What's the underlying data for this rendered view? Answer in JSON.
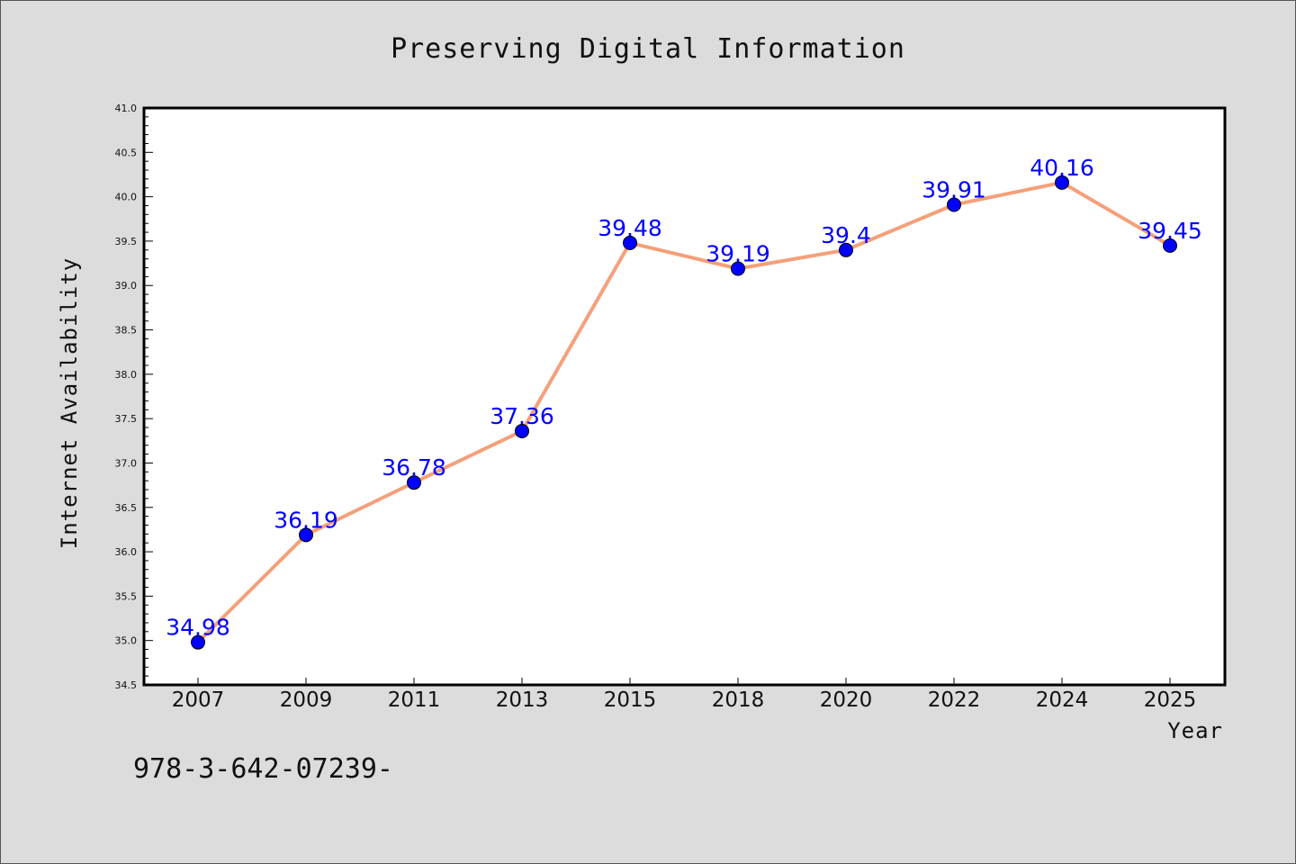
{
  "chart_data": {
    "type": "line",
    "title": "Preserving Digital Information",
    "xlabel": "Year",
    "ylabel": "Internet Availability",
    "categories": [
      "2007",
      "2009",
      "2011",
      "2013",
      "2015",
      "2018",
      "2020",
      "2022",
      "2024",
      "2025"
    ],
    "series": [
      {
        "values": [
          34.98,
          36.19,
          36.78,
          37.36,
          39.48,
          39.19,
          39.4,
          39.91,
          40.16,
          39.45
        ],
        "data_labels": [
          "34.98",
          "36.19",
          "36.78",
          "37.36",
          "39.48",
          "39.19",
          "39.4",
          "39.91",
          "40.16",
          "39.45"
        ]
      }
    ],
    "ylim": [
      34.5,
      41.0
    ],
    "yticks": [
      "34.5",
      "35.0",
      "35.5",
      "36.0",
      "36.5",
      "37.0",
      "37.5",
      "38.0",
      "38.5",
      "39.0",
      "39.5",
      "40.0",
      "40.5",
      "41.0"
    ],
    "grid": false,
    "colors": {
      "line": "#f4a07a",
      "marker": "#0000ff",
      "data_label": "#0000ff",
      "background": "#dcdcdc",
      "plot_background": "#ffffff"
    }
  },
  "footer_text": "978-3-642-07239-"
}
